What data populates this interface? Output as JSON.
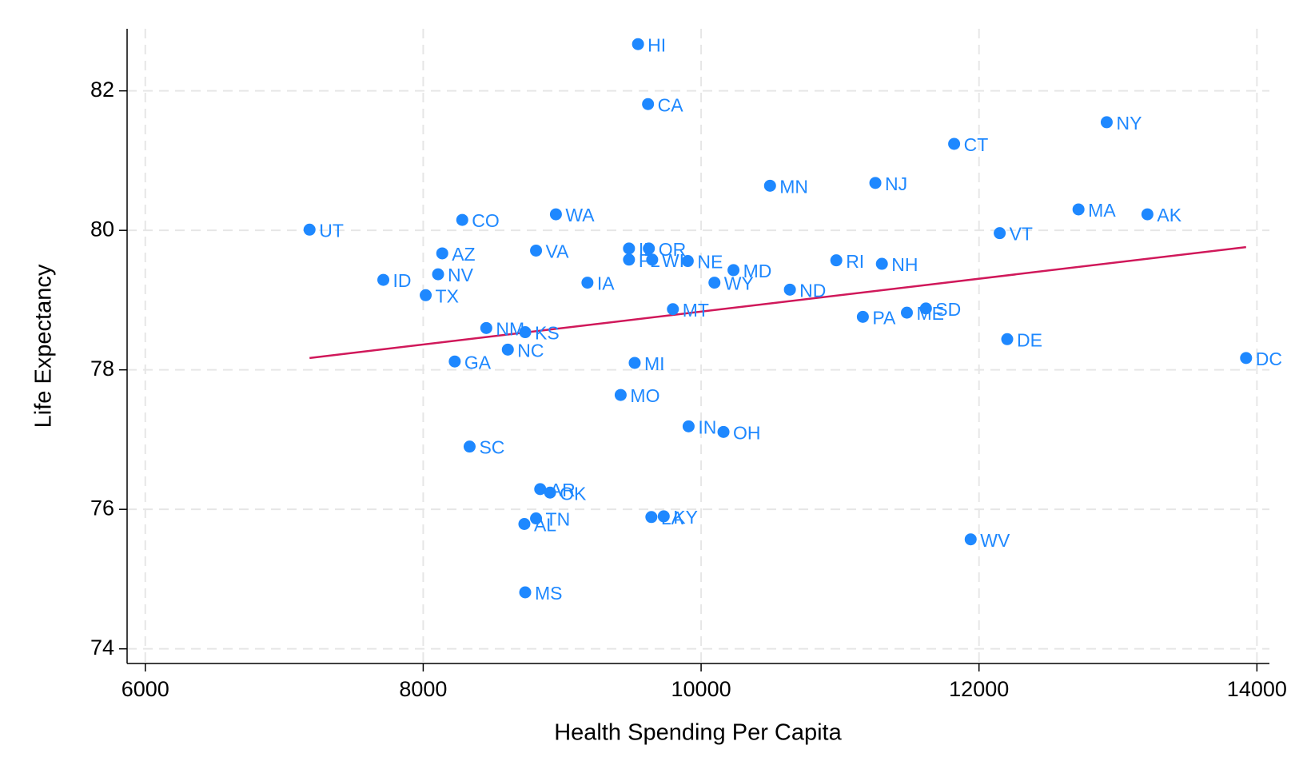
{
  "chart_data": {
    "type": "scatter",
    "x_label": "Health Spending Per Capita",
    "y_label": "Life Expectancy",
    "xlim": [
      5869,
      14090
    ],
    "ylim": [
      73.79,
      82.89
    ],
    "xticks": [
      6000,
      8000,
      10000,
      12000,
      14000
    ],
    "yticks": [
      74,
      76,
      78,
      80,
      82
    ],
    "grid": true,
    "color": "#1e88ff",
    "labels": [
      "HI",
      "CA",
      "NY",
      "CT",
      "MN",
      "NJ",
      "MA",
      "AK",
      "VT",
      "UT",
      "CO",
      "WA",
      "AZ",
      "VA",
      "OR",
      "IL",
      "FL",
      "WI",
      "NE",
      "MD",
      "WY",
      "ND",
      "RI",
      "NH",
      "ID",
      "NV",
      "TX",
      "IA",
      "MT",
      "NM",
      "KS",
      "NC",
      "PA",
      "ME",
      "SD",
      "DE",
      "GA",
      "MI",
      "DC",
      "MO",
      "IN",
      "OH",
      "SC",
      "AR",
      "OK",
      "TN",
      "AL",
      "LA",
      "KY",
      "WV",
      "MS"
    ],
    "x": [
      9546,
      9618,
      12919,
      11821,
      10496,
      11254,
      12716,
      13212,
      12149,
      7182,
      8281,
      8955,
      8137,
      8812,
      9624,
      9481,
      9481,
      9648,
      9904,
      10233,
      10096,
      10639,
      10973,
      11301,
      7713,
      8107,
      8018,
      9182,
      9797,
      8454,
      8734,
      8609,
      11164,
      11481,
      11618,
      12203,
      8227,
      9522,
      13922,
      9421,
      9910,
      10161,
      8334,
      8842,
      8913,
      8812,
      8728,
      9642,
      9731,
      11940,
      8734
    ],
    "y": [
      82.67,
      81.81,
      81.55,
      81.24,
      80.64,
      80.68,
      80.3,
      80.23,
      79.96,
      80.01,
      80.15,
      80.23,
      79.67,
      79.71,
      79.74,
      79.74,
      79.58,
      79.58,
      79.56,
      79.43,
      79.25,
      79.15,
      79.57,
      79.52,
      79.29,
      79.37,
      79.07,
      79.25,
      78.87,
      78.6,
      78.54,
      78.29,
      78.76,
      78.82,
      78.88,
      78.44,
      78.12,
      78.1,
      78.17,
      77.64,
      77.19,
      77.11,
      76.9,
      76.29,
      76.24,
      75.87,
      75.79,
      75.89,
      75.9,
      75.57,
      74.81
    ],
    "fit_line": {
      "x": [
        7182,
        13922
      ],
      "y": [
        78.17,
        79.76
      ],
      "color": "#d0185a"
    }
  }
}
